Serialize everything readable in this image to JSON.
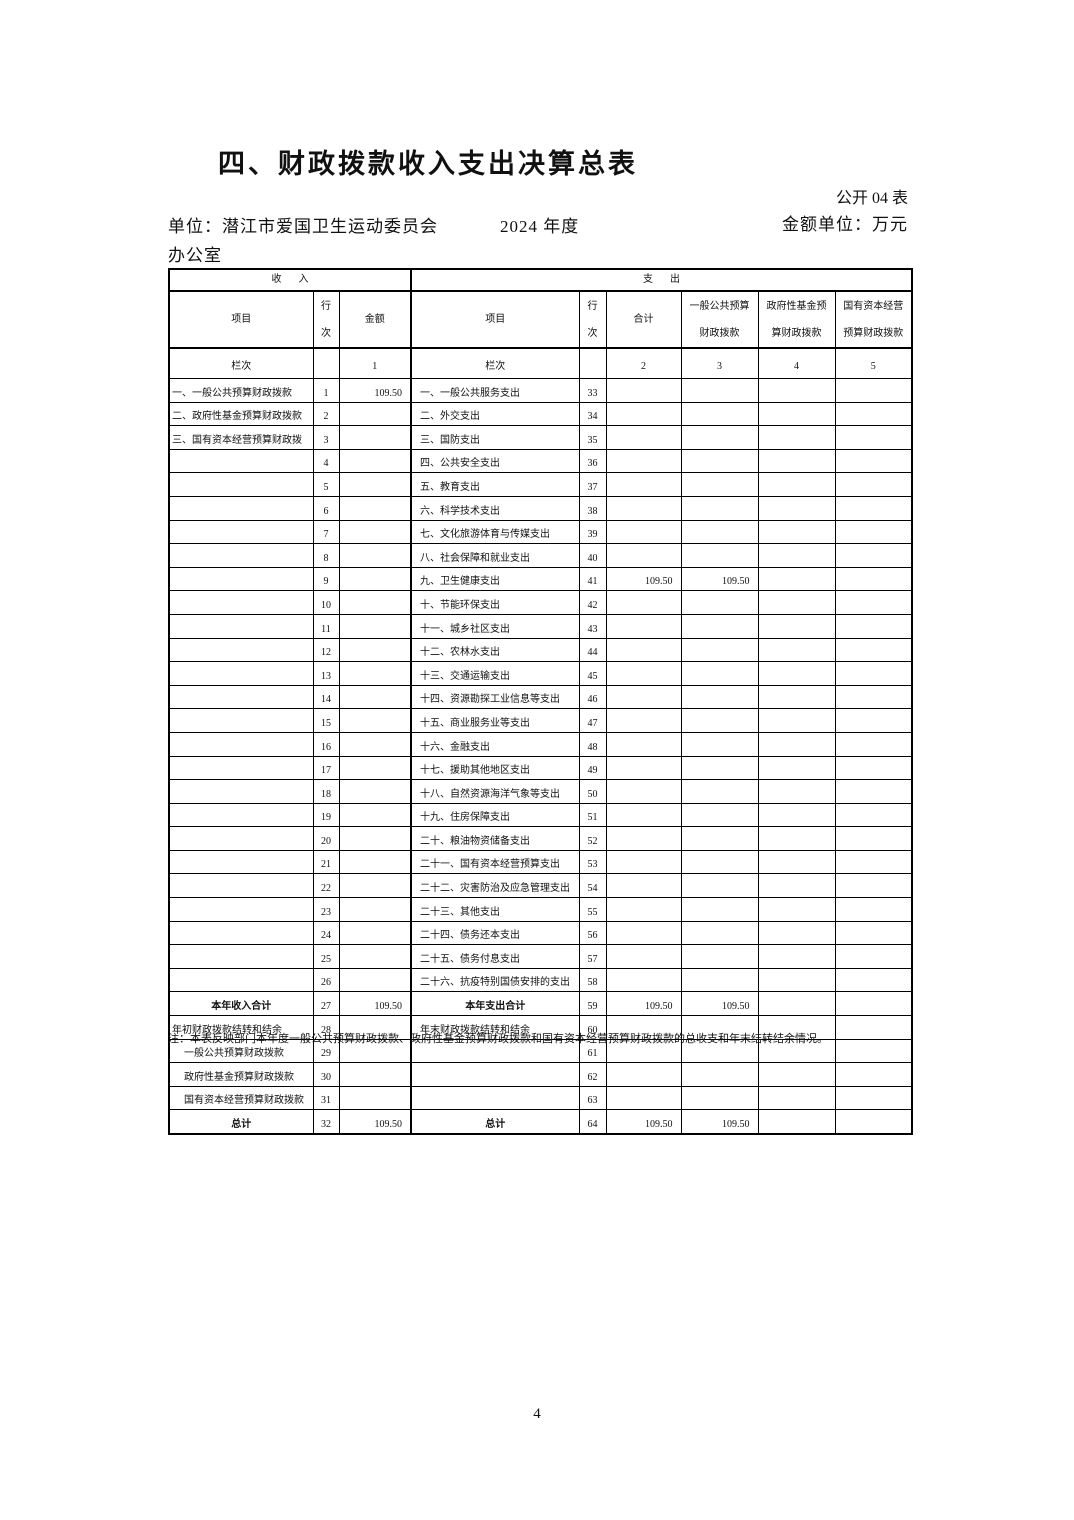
{
  "page": {
    "title": "四、财政拨款收入支出决算总表",
    "page_number": "4"
  },
  "meta": {
    "table_code": "公开 04 表",
    "unit_line1": "单位：潜江市爱国卫生运动委员会",
    "unit_line2": "办公室",
    "year": "2024 年度",
    "amount_unit": "金额单位：万元"
  },
  "table": {
    "section_income": "收入",
    "section_expense": "支出",
    "headers": {
      "item_label": "项目",
      "line_no_label": "行\n次",
      "amount_label": "金额",
      "total_label": "合计",
      "general_label": "一般公共预算财政拨款",
      "fund_label": "政府性基金预算财政拨款",
      "capital_label": "国有资本经营预算财政拨款",
      "col_index_label": "栏次",
      "col_indexes": [
        "1",
        "2",
        "3",
        "4",
        "5"
      ]
    },
    "rows": [
      {
        "income_item": "一、一般公共预算财政拨款",
        "income_style": "",
        "income_line": "1",
        "income_amount": "109.50",
        "expense_item": "一、一般公共服务支出",
        "expense_style": "",
        "expense_line": "33",
        "total": "",
        "general_budget": "",
        "gov_fund": "",
        "state_capital": ""
      },
      {
        "income_item": "二、政府性基金预算财政拨款",
        "income_style": "",
        "income_line": "2",
        "income_amount": "",
        "expense_item": "二、外交支出",
        "expense_style": "",
        "expense_line": "34",
        "total": "",
        "general_budget": "",
        "gov_fund": "",
        "state_capital": ""
      },
      {
        "income_item": "三、国有资本经营预算财政拨",
        "income_style": "",
        "income_line": "3",
        "income_amount": "",
        "expense_item": "三、国防支出",
        "expense_style": "",
        "expense_line": "35",
        "total": "",
        "general_budget": "",
        "gov_fund": "",
        "state_capital": ""
      },
      {
        "income_item": "",
        "income_style": "",
        "income_line": "4",
        "income_amount": "",
        "expense_item": "四、公共安全支出",
        "expense_style": "",
        "expense_line": "36",
        "total": "",
        "general_budget": "",
        "gov_fund": "",
        "state_capital": ""
      },
      {
        "income_item": "",
        "income_style": "",
        "income_line": "5",
        "income_amount": "",
        "expense_item": "五、教育支出",
        "expense_style": "",
        "expense_line": "37",
        "total": "",
        "general_budget": "",
        "gov_fund": "",
        "state_capital": ""
      },
      {
        "income_item": "",
        "income_style": "",
        "income_line": "6",
        "income_amount": "",
        "expense_item": "六、科学技术支出",
        "expense_style": "",
        "expense_line": "38",
        "total": "",
        "general_budget": "",
        "gov_fund": "",
        "state_capital": ""
      },
      {
        "income_item": "",
        "income_style": "",
        "income_line": "7",
        "income_amount": "",
        "expense_item": "七、文化旅游体育与传媒支出",
        "expense_style": "",
        "expense_line": "39",
        "total": "",
        "general_budget": "",
        "gov_fund": "",
        "state_capital": ""
      },
      {
        "income_item": "",
        "income_style": "",
        "income_line": "8",
        "income_amount": "",
        "expense_item": "八、社会保障和就业支出",
        "expense_style": "",
        "expense_line": "40",
        "total": "",
        "general_budget": "",
        "gov_fund": "",
        "state_capital": ""
      },
      {
        "income_item": "",
        "income_style": "",
        "income_line": "9",
        "income_amount": "",
        "expense_item": "九、卫生健康支出",
        "expense_style": "",
        "expense_line": "41",
        "total": "109.50",
        "general_budget": "109.50",
        "gov_fund": "",
        "state_capital": ""
      },
      {
        "income_item": "",
        "income_style": "",
        "income_line": "10",
        "income_amount": "",
        "expense_item": "十、节能环保支出",
        "expense_style": "",
        "expense_line": "42",
        "total": "",
        "general_budget": "",
        "gov_fund": "",
        "state_capital": ""
      },
      {
        "income_item": "",
        "income_style": "",
        "income_line": "11",
        "income_amount": "",
        "expense_item": "十一、城乡社区支出",
        "expense_style": "",
        "expense_line": "43",
        "total": "",
        "general_budget": "",
        "gov_fund": "",
        "state_capital": ""
      },
      {
        "income_item": "",
        "income_style": "",
        "income_line": "12",
        "income_amount": "",
        "expense_item": "十二、农林水支出",
        "expense_style": "",
        "expense_line": "44",
        "total": "",
        "general_budget": "",
        "gov_fund": "",
        "state_capital": ""
      },
      {
        "income_item": "",
        "income_style": "",
        "income_line": "13",
        "income_amount": "",
        "expense_item": "十三、交通运输支出",
        "expense_style": "",
        "expense_line": "45",
        "total": "",
        "general_budget": "",
        "gov_fund": "",
        "state_capital": ""
      },
      {
        "income_item": "",
        "income_style": "",
        "income_line": "14",
        "income_amount": "",
        "expense_item": "十四、资源勘探工业信息等支出",
        "expense_style": "",
        "expense_line": "46",
        "total": "",
        "general_budget": "",
        "gov_fund": "",
        "state_capital": ""
      },
      {
        "income_item": "",
        "income_style": "",
        "income_line": "15",
        "income_amount": "",
        "expense_item": "十五、商业服务业等支出",
        "expense_style": "",
        "expense_line": "47",
        "total": "",
        "general_budget": "",
        "gov_fund": "",
        "state_capital": ""
      },
      {
        "income_item": "",
        "income_style": "",
        "income_line": "16",
        "income_amount": "",
        "expense_item": "十六、金融支出",
        "expense_style": "",
        "expense_line": "48",
        "total": "",
        "general_budget": "",
        "gov_fund": "",
        "state_capital": ""
      },
      {
        "income_item": "",
        "income_style": "",
        "income_line": "17",
        "income_amount": "",
        "expense_item": "十七、援助其他地区支出",
        "expense_style": "",
        "expense_line": "49",
        "total": "",
        "general_budget": "",
        "gov_fund": "",
        "state_capital": ""
      },
      {
        "income_item": "",
        "income_style": "",
        "income_line": "18",
        "income_amount": "",
        "expense_item": "十八、自然资源海洋气象等支出",
        "expense_style": "",
        "expense_line": "50",
        "total": "",
        "general_budget": "",
        "gov_fund": "",
        "state_capital": ""
      },
      {
        "income_item": "",
        "income_style": "",
        "income_line": "19",
        "income_amount": "",
        "expense_item": "十九、住房保障支出",
        "expense_style": "",
        "expense_line": "51",
        "total": "",
        "general_budget": "",
        "gov_fund": "",
        "state_capital": ""
      },
      {
        "income_item": "",
        "income_style": "",
        "income_line": "20",
        "income_amount": "",
        "expense_item": "二十、粮油物资储备支出",
        "expense_style": "",
        "expense_line": "52",
        "total": "",
        "general_budget": "",
        "gov_fund": "",
        "state_capital": ""
      },
      {
        "income_item": "",
        "income_style": "",
        "income_line": "21",
        "income_amount": "",
        "expense_item": "二十一、国有资本经营预算支出",
        "expense_style": "",
        "expense_line": "53",
        "total": "",
        "general_budget": "",
        "gov_fund": "",
        "state_capital": ""
      },
      {
        "income_item": "",
        "income_style": "",
        "income_line": "22",
        "income_amount": "",
        "expense_item": "二十二、灾害防治及应急管理支出",
        "expense_style": "",
        "expense_line": "54",
        "total": "",
        "general_budget": "",
        "gov_fund": "",
        "state_capital": ""
      },
      {
        "income_item": "",
        "income_style": "",
        "income_line": "23",
        "income_amount": "",
        "expense_item": "二十三、其他支出",
        "expense_style": "",
        "expense_line": "55",
        "total": "",
        "general_budget": "",
        "gov_fund": "",
        "state_capital": ""
      },
      {
        "income_item": "",
        "income_style": "",
        "income_line": "24",
        "income_amount": "",
        "expense_item": "二十四、债务还本支出",
        "expense_style": "",
        "expense_line": "56",
        "total": "",
        "general_budget": "",
        "gov_fund": "",
        "state_capital": ""
      },
      {
        "income_item": "",
        "income_style": "",
        "income_line": "25",
        "income_amount": "",
        "expense_item": "二十五、债务付息支出",
        "expense_style": "",
        "expense_line": "57",
        "total": "",
        "general_budget": "",
        "gov_fund": "",
        "state_capital": ""
      },
      {
        "income_item": "",
        "income_style": "",
        "income_line": "26",
        "income_amount": "",
        "expense_item": "二十六、抗疫特别国债安排的支出",
        "expense_style": "",
        "expense_line": "58",
        "total": "",
        "general_budget": "",
        "gov_fund": "",
        "state_capital": ""
      },
      {
        "income_item": "本年收入合计",
        "income_style": "total",
        "income_line": "27",
        "income_amount": "109.50",
        "expense_item": "本年支出合计",
        "expense_style": "total",
        "expense_line": "59",
        "total": "109.50",
        "general_budget": "109.50",
        "gov_fund": "",
        "state_capital": ""
      },
      {
        "income_item": "年初财政拨款结转和结余",
        "income_style": "",
        "income_line": "28",
        "income_amount": "",
        "expense_item": "年末财政拨款结转和结余",
        "expense_style": "",
        "expense_line": "60",
        "total": "",
        "general_budget": "",
        "gov_fund": "",
        "state_capital": ""
      },
      {
        "income_item": "一般公共预算财政拨款",
        "income_style": "indent",
        "income_line": "29",
        "income_amount": "",
        "expense_item": "",
        "expense_style": "",
        "expense_line": "61",
        "total": "",
        "general_budget": "",
        "gov_fund": "",
        "state_capital": ""
      },
      {
        "income_item": "政府性基金预算财政拨款",
        "income_style": "indent",
        "income_line": "30",
        "income_amount": "",
        "expense_item": "",
        "expense_style": "",
        "expense_line": "62",
        "total": "",
        "general_budget": "",
        "gov_fund": "",
        "state_capital": ""
      },
      {
        "income_item": "国有资本经营预算财政拨款",
        "income_style": "indent",
        "income_line": "31",
        "income_amount": "",
        "expense_item": "",
        "expense_style": "",
        "expense_line": "63",
        "total": "",
        "general_budget": "",
        "gov_fund": "",
        "state_capital": ""
      },
      {
        "income_item": "总计",
        "income_style": "total",
        "income_line": "32",
        "income_amount": "109.50",
        "expense_item": "总计",
        "expense_style": "total",
        "expense_line": "64",
        "total": "109.50",
        "general_budget": "109.50",
        "gov_fund": "",
        "state_capital": ""
      }
    ]
  },
  "note": "注：本表反映部门本年度一般公共预算财政拨款、政府性基金预算财政拨款和国有资本经营预算财政拨款的总收支和年末结转结余情况。"
}
